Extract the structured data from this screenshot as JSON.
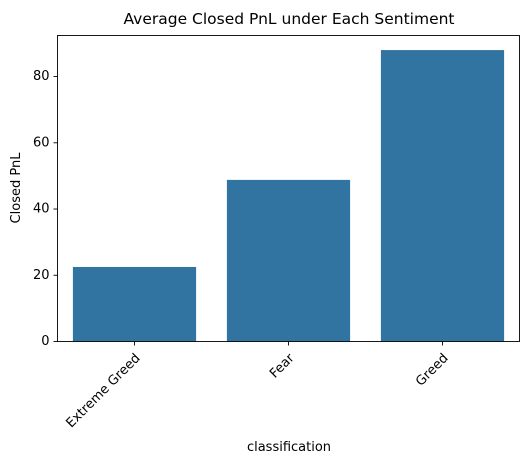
{
  "chart_data": {
    "type": "bar",
    "title": "Average Closed PnL under Each Sentiment",
    "xlabel": "classification",
    "ylabel": "Closed PnL",
    "categories": [
      "Extreme Greed",
      "Fear",
      "Greed"
    ],
    "values": [
      22.5,
      48.8,
      88.0
    ],
    "ylim": [
      0,
      92.4
    ],
    "yticks": [
      0,
      20,
      40,
      60,
      80
    ],
    "bar_color": "#3274a1",
    "grid": false,
    "legend": "none"
  }
}
